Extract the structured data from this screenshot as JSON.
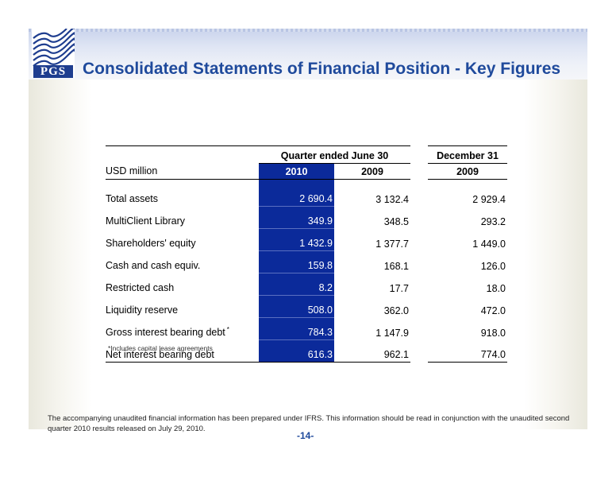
{
  "logo": {
    "text": "PGS"
  },
  "title": "Consolidated Statements of Financial Position - Key Figures",
  "table": {
    "group_quarter": "Quarter ended June 30",
    "group_december": "December 31",
    "unit_label": "USD million",
    "col_2010": "2010",
    "col_2009": "2009",
    "col_dec_2009": "2009",
    "rows": [
      {
        "label": "Total assets",
        "marker": "",
        "v2010": "2 690.4",
        "v2009": "3 132.4",
        "dec2009": "2 929.4"
      },
      {
        "label": "MultiClient Library",
        "marker": "",
        "v2010": "349.9",
        "v2009": "348.5",
        "dec2009": "293.2"
      },
      {
        "label": "Shareholders' equity",
        "marker": "",
        "v2010": "1 432.9",
        "v2009": "1 377.7",
        "dec2009": "1 449.0"
      },
      {
        "label": "Cash and cash equiv.",
        "marker": "",
        "v2010": "159.8",
        "v2009": "168.1",
        "dec2009": "126.0"
      },
      {
        "label": "Restricted cash",
        "marker": "",
        "v2010": "8.2",
        "v2009": "17.7",
        "dec2009": "18.0"
      },
      {
        "label": "Liquidity reserve",
        "marker": "",
        "v2010": "508.0",
        "v2009": "362.0",
        "dec2009": "472.0"
      },
      {
        "label": "Gross interest bearing debt",
        "marker": "*",
        "v2010": "784.3",
        "v2009": "1 147.9",
        "dec2009": "918.0"
      },
      {
        "label": "Net interest bearing debt",
        "marker": "",
        "v2010": "616.3",
        "v2009": "962.1",
        "dec2009": "774.0"
      }
    ]
  },
  "footnote": "*Includes capital lease agreements",
  "disclaimer": "The accompanying unaudited financial information has been prepared under IFRS. This information should be read in conjunction with the unaudited second quarter 2010 results released on July 29, 2010.",
  "page_number": "-14-",
  "colors": {
    "brand_blue": "#1f4a9c",
    "highlight_column": "#0b2a9a"
  }
}
